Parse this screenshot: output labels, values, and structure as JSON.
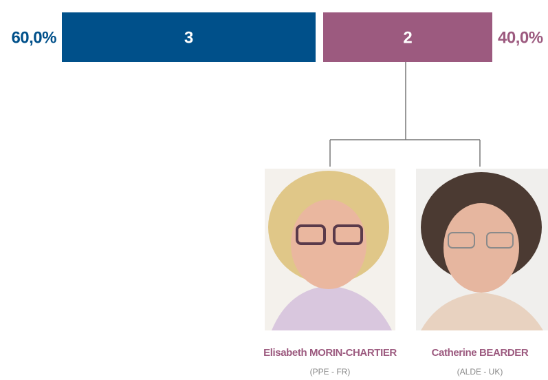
{
  "segments": [
    {
      "value": 3,
      "share": "60,0%",
      "color": "#00508a"
    },
    {
      "value": 2,
      "share": "40,0%",
      "color": "#9c5a7f"
    }
  ],
  "members": [
    {
      "name": "Elisabeth MORIN-CHARTIER",
      "group": "(PPE - FR)"
    },
    {
      "name": "Catherine BEARDER",
      "group": "(ALDE - UK)"
    }
  ]
}
